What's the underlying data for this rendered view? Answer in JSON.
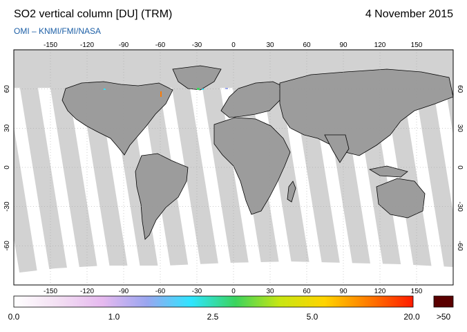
{
  "header": {
    "title": "SO2 vertical column [DU] (TRM)",
    "date": "4 November 2015",
    "source": "OMI  –  KNMI/FMI/NASA"
  },
  "map": {
    "lon_ticks": [
      "-150",
      "-120",
      "-90",
      "-60",
      "-30",
      "0",
      "30",
      "60",
      "90",
      "120",
      "150"
    ],
    "lat_ticks": [
      "60",
      "30",
      "0",
      "-30",
      "-60"
    ],
    "colors": {
      "ocean": "#ffffff",
      "land": "#9c9c9c",
      "nodata": "#d2d2d2",
      "coast": "#000000",
      "frame": "#000000"
    }
  },
  "colorbar": {
    "labels": [
      "0.0",
      "1.0",
      "2.5",
      "5.0",
      "20.0",
      ">50"
    ],
    "gradient_stops": [
      "#ffffff",
      "#f3dff3",
      "#e6b9ef",
      "#9aa6f0",
      "#2ee5ff",
      "#3bd45d",
      "#c8e612",
      "#ffd400",
      "#ff7a00",
      "#ff1b00"
    ],
    "overflow_color": "#5a0000"
  }
}
